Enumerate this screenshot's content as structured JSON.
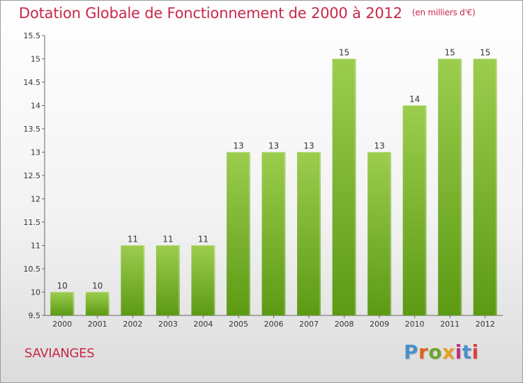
{
  "header": {
    "title": "Dotation Globale de Fonctionnement de 2000 à 2012",
    "unit": "(en milliers d'€)"
  },
  "footer": {
    "commune": "SAVIANGES",
    "logo_text": "Proxiti"
  },
  "colors": {
    "title": "#c7284a",
    "bar_light": "#9ccd4e",
    "bar_dark": "#5c9a14",
    "logo": [
      "#4a90c8",
      "#e0641c",
      "#6ca42c",
      "#e8a020",
      "#c03080",
      "#4a90c8",
      "#e04040"
    ]
  },
  "chart_data": {
    "type": "bar",
    "categories": [
      "2000",
      "2001",
      "2002",
      "2003",
      "2004",
      "2005",
      "2006",
      "2007",
      "2008",
      "2009",
      "2010",
      "2011",
      "2012"
    ],
    "values": [
      10,
      10,
      11,
      11,
      11,
      13,
      13,
      13,
      15,
      13,
      14,
      15,
      15
    ],
    "data_labels": [
      "10",
      "10",
      "11",
      "11",
      "11",
      "13",
      "13",
      "13",
      "15",
      "13",
      "14",
      "15",
      "15"
    ],
    "ylim": [
      9.5,
      15.5
    ],
    "yticks": [
      9.5,
      10,
      10.5,
      11,
      11.5,
      12,
      12.5,
      13,
      13.5,
      14,
      14.5,
      15,
      15.5
    ],
    "ytick_labels": [
      "9.5",
      "10",
      "10.5",
      "11",
      "11.5",
      "12",
      "12.5",
      "13",
      "13.5",
      "14",
      "14.5",
      "15",
      "15.5"
    ],
    "grid": false,
    "legend": "none"
  }
}
